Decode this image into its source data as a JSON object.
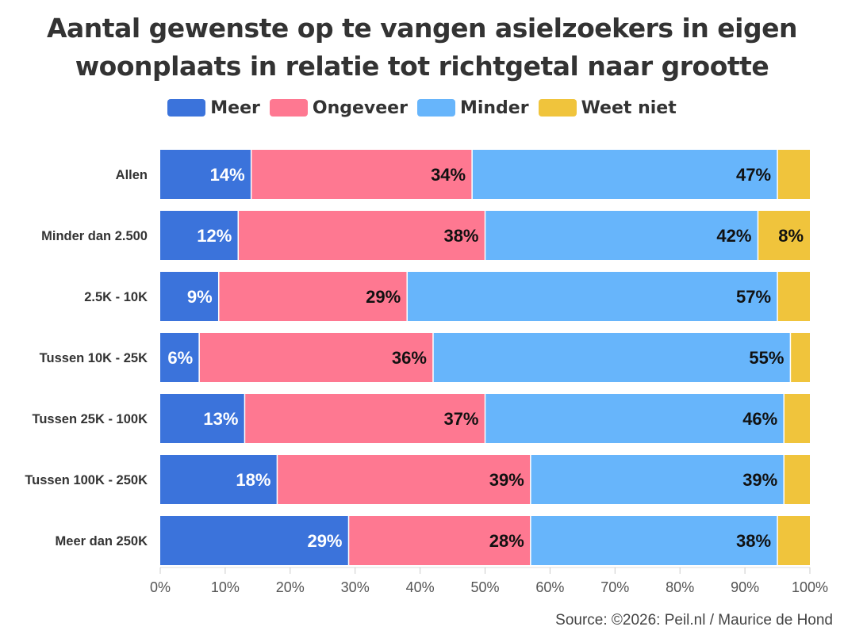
{
  "chart_data": {
    "type": "bar",
    "orientation": "horizontal",
    "stacked": true,
    "title_lines": [
      "Aantal gewenste op te vangen asielzoekers in eigen",
      "woonplaats in relatie tot richtgetal naar grootte"
    ],
    "categories": [
      "Allen",
      "Minder dan 2.500",
      "2.5K - 10K",
      "Tussen 10K - 25K",
      "Tussen 25K - 100K",
      "Tussen 100K - 250K",
      "Meer dan 250K"
    ],
    "series": [
      {
        "name": "Meer",
        "color": "#3b73db",
        "label_color": "#ffffff",
        "values": [
          14,
          12,
          9,
          6,
          13,
          18,
          29
        ]
      },
      {
        "name": "Ongeveer",
        "color": "#fe7891",
        "label_color": "#111111",
        "values": [
          34,
          38,
          29,
          36,
          37,
          39,
          28
        ]
      },
      {
        "name": "Minder",
        "color": "#67b5fb",
        "label_color": "#111111",
        "values": [
          47,
          42,
          57,
          55,
          46,
          39,
          38
        ]
      },
      {
        "name": "Weet niet",
        "color": "#f0c43c",
        "label_color": "#111111",
        "values": [
          5,
          8,
          5,
          3,
          4,
          4,
          5
        ]
      }
    ],
    "data_labels": [
      [
        "14%",
        "34%",
        "47%",
        ""
      ],
      [
        "12%",
        "38%",
        "42%",
        "8%"
      ],
      [
        "9%",
        "29%",
        "57%",
        ""
      ],
      [
        "6%",
        "36%",
        "55%",
        ""
      ],
      [
        "13%",
        "37%",
        "46%",
        ""
      ],
      [
        "18%",
        "39%",
        "39%",
        ""
      ],
      [
        "29%",
        "28%",
        "38%",
        ""
      ]
    ],
    "x_ticks": [
      "0%",
      "10%",
      "20%",
      "30%",
      "40%",
      "50%",
      "60%",
      "70%",
      "80%",
      "90%",
      "100%"
    ],
    "xlim": [
      0,
      100
    ],
    "legend_position": "top-center",
    "grid": false
  },
  "source": "Source: ©2026: Peil.nl / Maurice de Hond"
}
